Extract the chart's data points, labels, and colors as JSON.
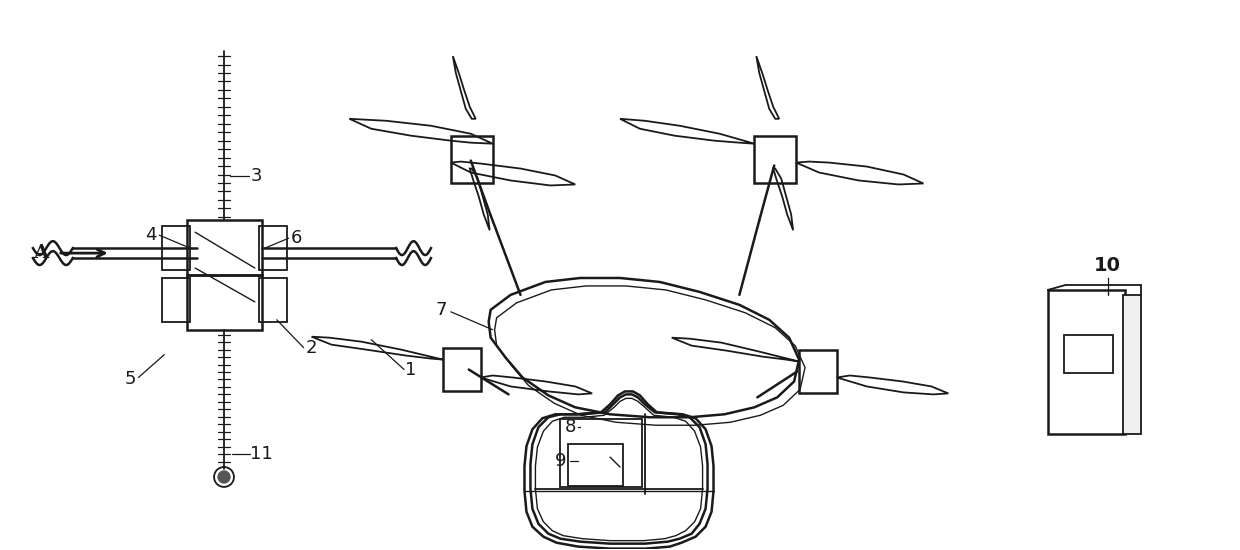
{
  "bg_color": "#ffffff",
  "line_color": "#1a1a1a",
  "label_color": "#1a1a1a",
  "fig_width": 12.4,
  "fig_height": 5.5,
  "dpi": 100
}
